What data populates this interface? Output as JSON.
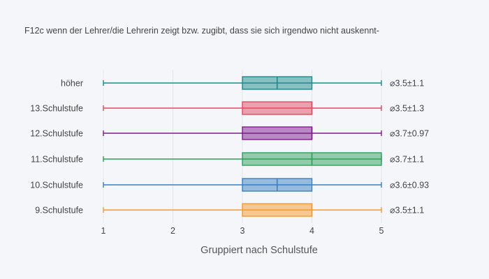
{
  "title": "F12c wenn der Lehrer/die Lehrerin zeigt bzw. zugibt, dass sie sich irgendwo nicht auskennt-",
  "chart_data": {
    "type": "box",
    "orientation": "horizontal",
    "title": "F12c wenn der Lehrer/die Lehrerin zeigt bzw. zugibt, dass sie sich irgendwo nicht auskennt-",
    "xlabel": "Gruppiert nach Schulstufe",
    "ylabel": "",
    "xlim": [
      0.75,
      5.75
    ],
    "xticks": [
      1,
      2,
      3,
      4,
      5
    ],
    "grid": true,
    "series": [
      {
        "category": "höher",
        "min": 1,
        "q1": 3,
        "median": 3.5,
        "q3": 4,
        "max": 5,
        "annotation": "⌀3.5±1.1",
        "color": "#1a8a8a"
      },
      {
        "category": "13.Schulstufe",
        "min": 1,
        "q1": 3,
        "median": 4,
        "q3": 4,
        "max": 5,
        "annotation": "⌀3.5±1.3",
        "color": "#e04a5f"
      },
      {
        "category": "12.Schulstufe",
        "min": 1,
        "q1": 3,
        "median": 4,
        "q3": 4,
        "max": 5,
        "annotation": "⌀3.7±0.97",
        "color": "#7f1a8f"
      },
      {
        "category": "11.Schulstufe",
        "min": 1,
        "q1": 3,
        "median": 4,
        "q3": 5,
        "max": 5,
        "annotation": "⌀3.7±1.1",
        "color": "#2ea05a"
      },
      {
        "category": "10.Schulstufe",
        "min": 1,
        "q1": 3,
        "median": 3.5,
        "q3": 4,
        "max": 5,
        "annotation": "⌀3.6±0.93",
        "color": "#3a7fc0"
      },
      {
        "category": "9.Schulstufe",
        "min": 1,
        "q1": 3,
        "median": 4,
        "q3": 4,
        "max": 5,
        "annotation": "⌀3.5±1.1",
        "color": "#f59a2a"
      }
    ]
  }
}
